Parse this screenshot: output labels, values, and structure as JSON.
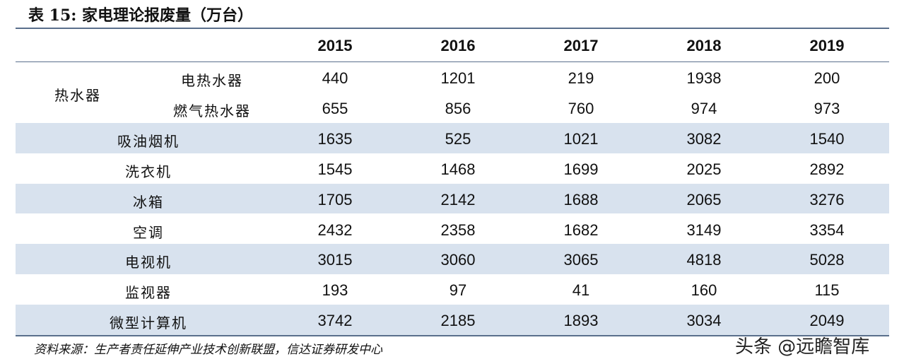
{
  "title": "表 15: 家电理论报废量（万台）",
  "table": {
    "header": [
      "2015",
      "2016",
      "2017",
      "2018",
      "2019"
    ],
    "group": {
      "label": "热水器",
      "rows": [
        {
          "label": "电热水器",
          "values": [
            440,
            1201,
            219,
            1938,
            200
          ]
        },
        {
          "label": "燃气热水器",
          "values": [
            655,
            856,
            760,
            974,
            973
          ]
        }
      ]
    },
    "rows": [
      {
        "label": "吸油烟机",
        "values": [
          1635,
          525,
          1021,
          3082,
          1540
        ]
      },
      {
        "label": "洗衣机",
        "values": [
          1545,
          1468,
          1699,
          2025,
          2892
        ]
      },
      {
        "label": "冰箱",
        "values": [
          1705,
          2142,
          1688,
          2065,
          3276
        ]
      },
      {
        "label": "空调",
        "values": [
          2432,
          2358,
          1682,
          3149,
          3354
        ]
      },
      {
        "label": "电视机",
        "values": [
          3015,
          3060,
          3065,
          4818,
          5028
        ]
      },
      {
        "label": "监视器",
        "values": [
          193,
          97,
          41,
          160,
          115
        ]
      },
      {
        "label": "微型计算机",
        "values": [
          3742,
          2185,
          1893,
          3034,
          2049
        ]
      }
    ]
  },
  "source": "资料来源：生产者责任延伸产业技术创新联盟，信达证券研发中心",
  "watermark": "头条 @远瞻智库"
}
